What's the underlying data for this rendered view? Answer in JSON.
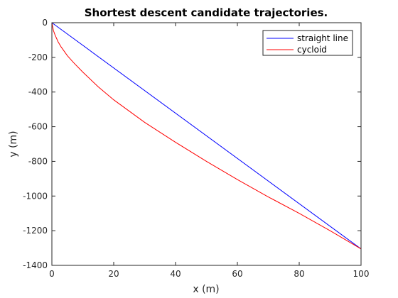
{
  "chart_data": {
    "type": "line",
    "title": "Shortest descent candidate trajectories.",
    "xlabel": "x (m)",
    "ylabel": "y (m)",
    "xlim": [
      0,
      100
    ],
    "ylim": [
      -1400,
      0
    ],
    "xticks": [
      0,
      20,
      40,
      60,
      80,
      100
    ],
    "yticks": [
      0,
      -200,
      -400,
      -600,
      -800,
      -1000,
      -1200,
      -1400
    ],
    "grid": false,
    "legend_position": "top-right",
    "series": [
      {
        "name": "straight line",
        "color": "#0000ff",
        "x": [
          0,
          100
        ],
        "y": [
          0,
          -1305
        ]
      },
      {
        "name": "cycloid",
        "color": "#ff0000",
        "x": [
          0,
          0.5,
          1,
          2,
          3,
          5,
          7,
          10,
          15,
          20,
          25,
          30,
          40,
          50,
          60,
          70,
          80,
          90,
          100
        ],
        "y": [
          0,
          -45,
          -70,
          -110,
          -140,
          -190,
          -230,
          -285,
          -370,
          -445,
          -510,
          -575,
          -690,
          -800,
          -905,
          -1005,
          -1100,
          -1200,
          -1305
        ]
      }
    ]
  }
}
